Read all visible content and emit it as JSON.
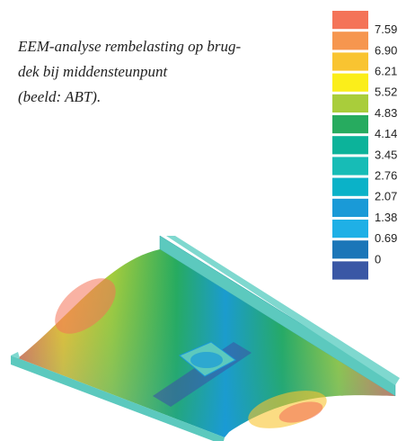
{
  "caption": {
    "lines": [
      "EEM-analyse rembelasting op brug-",
      "dek bij middensteunpunt",
      "(beeld: ABT)."
    ]
  },
  "legend": {
    "colors": [
      "#f47358",
      "#f6964f",
      "#f9c431",
      "#fbee1a",
      "#a9cd3b",
      "#27ab5f",
      "#0cb39a",
      "#17bcb6",
      "#0ab2c8",
      "#1a9ad7",
      "#1fb0e6",
      "#1b76b8",
      "#3a57a5"
    ],
    "labels": [
      "7.59",
      "6.90",
      "6.21",
      "5.52",
      "4.83",
      "4.14",
      "3.45",
      "2.76",
      "2.07",
      "1.38",
      "0.69",
      "0"
    ]
  }
}
